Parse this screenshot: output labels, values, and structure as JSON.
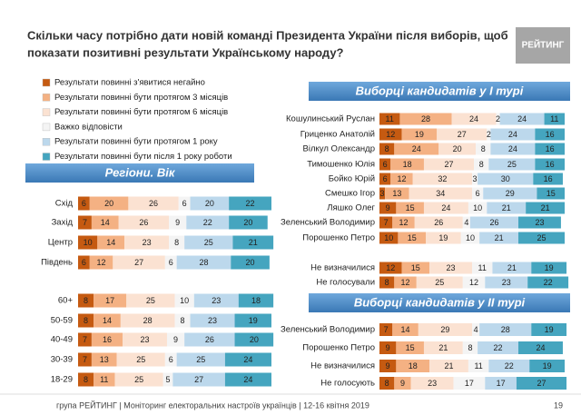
{
  "title_line1": "Скільки часу потрібно дати новій команді Президента України після виборів, щоб",
  "title_line2": "показати позитивні результати Українському народу?",
  "logo": "РЕЙТИНГ",
  "footer": "група РЕЙТИНГ | Моніторинг електоральних настроїв українців  |  12-16 квітня 2019",
  "page_number": "19",
  "chart_data": [
    {
      "type": "stacked-bar",
      "title": "Регіони. Вік",
      "categories": [
        "Схід",
        "Захід",
        "Центр",
        "Південь",
        "60+",
        "50-59",
        "40-49",
        "30-39",
        "18-29"
      ],
      "series": [
        {
          "name": "Результати повинні з'явитися негайно",
          "color": "#c55a11",
          "values": [
            6,
            7,
            10,
            6,
            8,
            8,
            7,
            7,
            8
          ]
        },
        {
          "name": "Результати повинні бути протягом 3 місяців",
          "color": "#f4b183",
          "values": [
            20,
            14,
            14,
            12,
            17,
            14,
            16,
            13,
            11
          ]
        },
        {
          "name": "Результати повинні бути протягом 6 місяців",
          "color": "#fbe2d2",
          "values": [
            26,
            26,
            23,
            27,
            25,
            28,
            23,
            25,
            25
          ]
        },
        {
          "name": "Важко відповісти",
          "color": "#f4f4f4",
          "values": [
            6,
            9,
            8,
            6,
            10,
            8,
            9,
            6,
            5
          ]
        },
        {
          "name": "Результати повинні бути протягом 1 року",
          "color": "#bcd8ec",
          "values": [
            20,
            22,
            25,
            28,
            23,
            23,
            26,
            25,
            27
          ]
        },
        {
          "name": "Результати повинні бути після 1 року роботи",
          "color": "#45a5bf",
          "values": [
            22,
            20,
            21,
            20,
            18,
            19,
            20,
            24,
            24
          ]
        }
      ]
    },
    {
      "type": "stacked-bar",
      "title": "Виборці кандидатів у І турі",
      "categories": [
        "Кошулинський Руслан",
        "Гриценко Анатолій",
        "Вілкул Олександр",
        "Тимошенко Юлія",
        "Бойко Юрій",
        "Смешко Ігор",
        "Ляшко Олег",
        "Зеленський Володимир",
        "Порошенко Петро",
        "Не визначилися",
        "Не голосували"
      ],
      "series": [
        {
          "values": [
            11,
            12,
            8,
            6,
            6,
            3,
            9,
            7,
            10,
            12,
            8
          ]
        },
        {
          "values": [
            28,
            19,
            24,
            18,
            12,
            13,
            15,
            12,
            15,
            15,
            12
          ]
        },
        {
          "values": [
            24,
            27,
            20,
            27,
            32,
            34,
            24,
            26,
            19,
            23,
            25
          ]
        },
        {
          "values": [
            2,
            2,
            8,
            8,
            3,
            6,
            10,
            4,
            10,
            11,
            12
          ]
        },
        {
          "values": [
            24,
            24,
            24,
            25,
            30,
            29,
            21,
            26,
            21,
            21,
            23
          ]
        },
        {
          "values": [
            11,
            16,
            16,
            16,
            16,
            15,
            21,
            23,
            25,
            19,
            22
          ]
        }
      ]
    },
    {
      "type": "stacked-bar",
      "title": "Виборці кандидатів у ІІ турі",
      "categories": [
        "Зеленський Володимир",
        "Порошенко Петро",
        "Не визначилися",
        "Не голосують"
      ],
      "series": [
        {
          "values": [
            7,
            9,
            9,
            8
          ]
        },
        {
          "values": [
            14,
            15,
            18,
            9
          ]
        },
        {
          "values": [
            29,
            21,
            21,
            23
          ]
        },
        {
          "values": [
            4,
            8,
            11,
            17
          ]
        },
        {
          "values": [
            28,
            22,
            22,
            17
          ]
        },
        {
          "values": [
            19,
            24,
            19,
            27
          ]
        }
      ]
    }
  ]
}
